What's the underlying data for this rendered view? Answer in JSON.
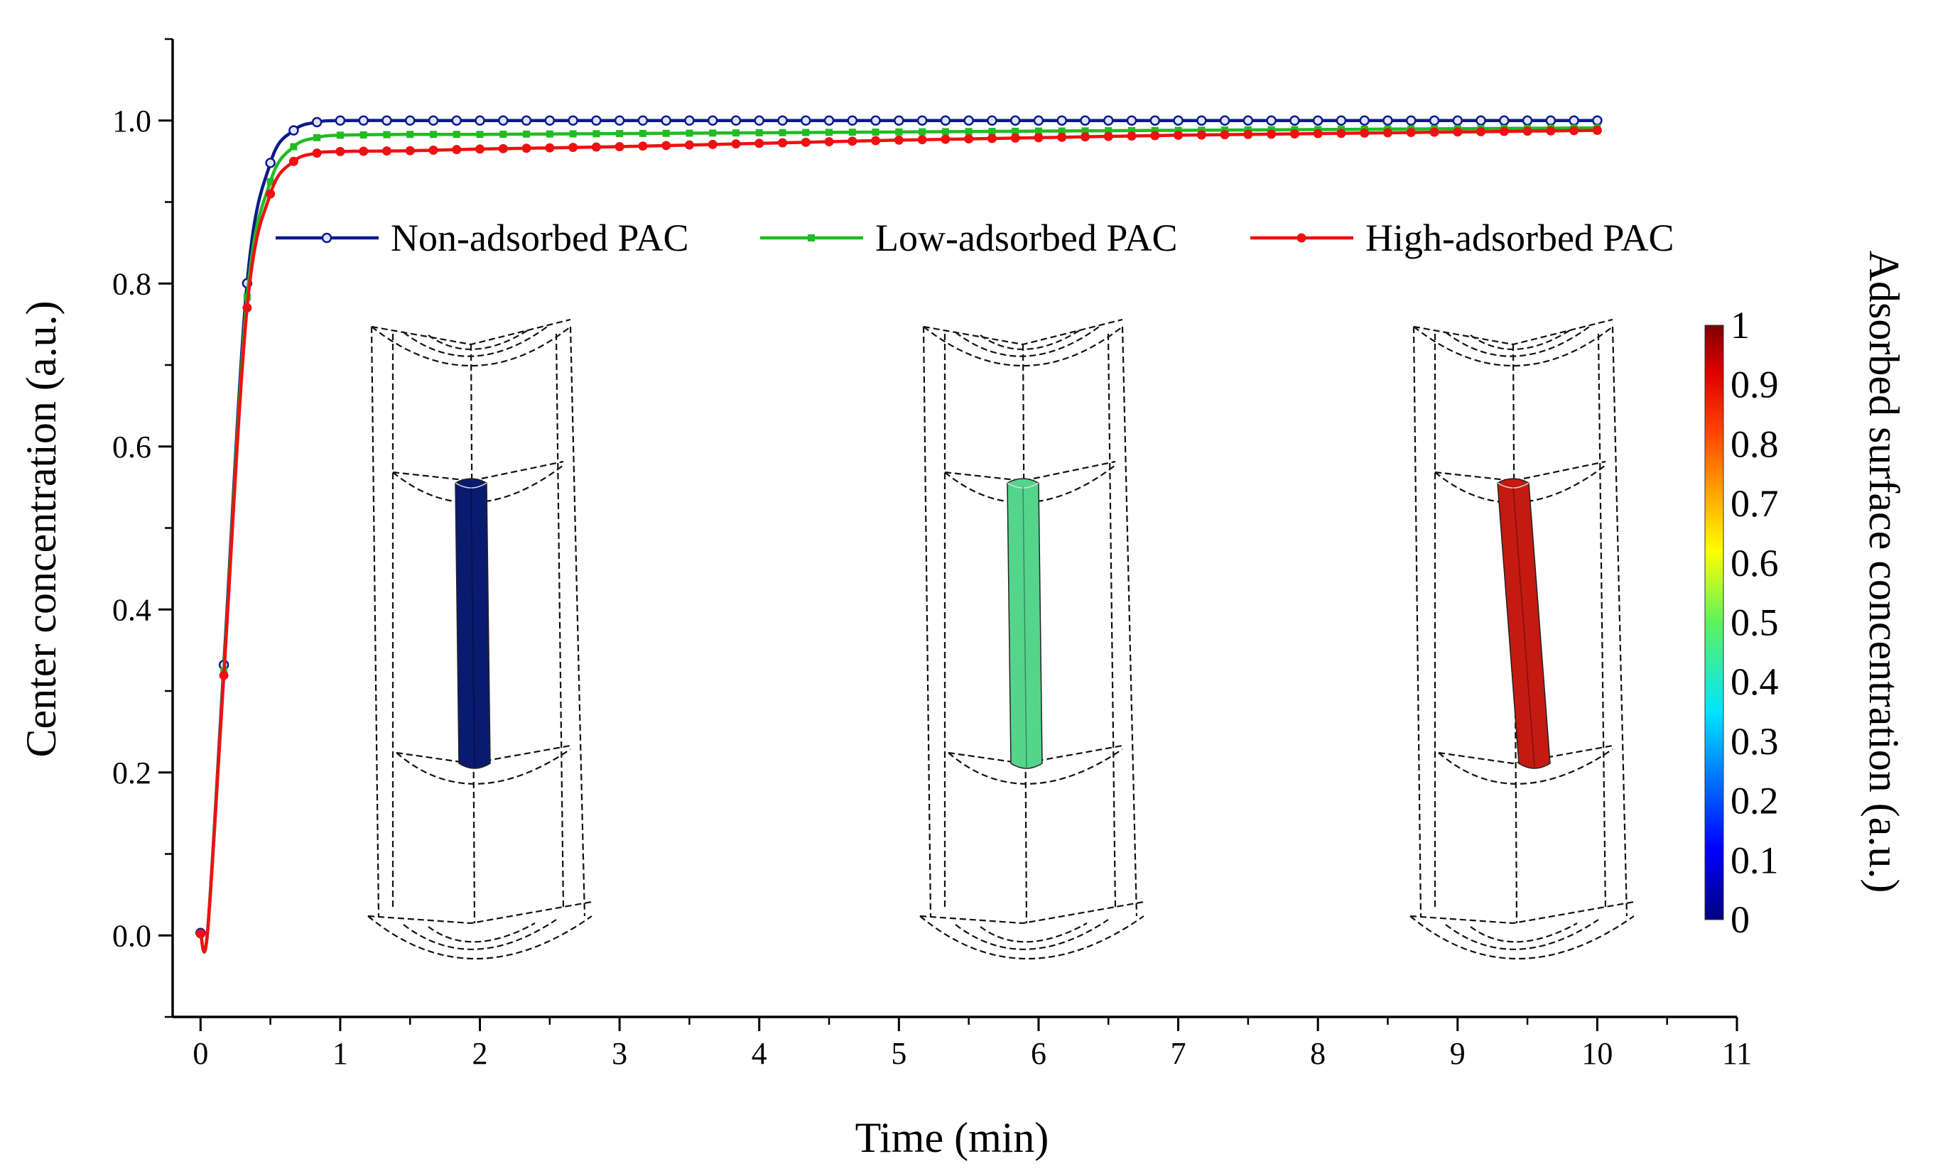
{
  "chart_data": {
    "type": "line",
    "title": "",
    "xlabel": "Time (min)",
    "ylabel": "Center concentration (a.u.)",
    "xlim": [
      -0.2,
      11
    ],
    "ylim": [
      -0.1,
      1.1
    ],
    "xticks": [
      0,
      1,
      2,
      3,
      4,
      5,
      6,
      7,
      8,
      9,
      10,
      11
    ],
    "yticks": [
      0.0,
      0.2,
      0.4,
      0.6,
      0.8,
      1.0
    ],
    "xtick_labels": [
      "0",
      "1",
      "2",
      "3",
      "4",
      "5",
      "6",
      "7",
      "8",
      "9",
      "10",
      "11"
    ],
    "ytick_labels": [
      "0.0",
      "0.2",
      "0.4",
      "0.6",
      "0.8",
      "1.0"
    ],
    "legend_position": "top-center",
    "series": [
      {
        "name": "Non-adsorbed PAC",
        "color": "#0d1b8a",
        "marker": "circle-open",
        "x": [
          0,
          0.05,
          0.167,
          0.333,
          0.5,
          0.667,
          0.833,
          1.0,
          1.5,
          2,
          3,
          4,
          5,
          6,
          7,
          8,
          9,
          10
        ],
        "y": [
          0.003,
          0.005,
          0.333,
          0.8,
          0.948,
          0.988,
          0.998,
          1.0,
          1.0,
          1.0,
          1.0,
          1.0,
          1.0,
          1.0,
          1.0,
          1.0,
          1.0,
          1.0
        ]
      },
      {
        "name": "Low-adsorbed PAC",
        "color": "#22bb22",
        "marker": "square",
        "x": [
          0,
          0.05,
          0.167,
          0.333,
          0.5,
          0.667,
          0.833,
          1.0,
          1.5,
          2,
          3,
          4,
          5,
          6,
          7,
          8,
          9,
          10
        ],
        "y": [
          0.002,
          0.004,
          0.325,
          0.783,
          0.925,
          0.968,
          0.979,
          0.982,
          0.983,
          0.983,
          0.984,
          0.985,
          0.986,
          0.987,
          0.988,
          0.989,
          0.99,
          0.991
        ]
      },
      {
        "name": "High-adsorbed PAC",
        "color": "#ee1111",
        "marker": "circle",
        "x": [
          0,
          0.05,
          0.167,
          0.333,
          0.5,
          0.667,
          0.833,
          1.0,
          1.5,
          2,
          3,
          4,
          5,
          6,
          7,
          8,
          9,
          10
        ],
        "y": [
          0.002,
          0.004,
          0.32,
          0.77,
          0.91,
          0.95,
          0.96,
          0.962,
          0.963,
          0.965,
          0.968,
          0.972,
          0.976,
          0.979,
          0.982,
          0.984,
          0.986,
          0.988
        ]
      }
    ],
    "colorbar": {
      "title": "Adsorbed surface concentration (a.u.)",
      "range": [
        0,
        1
      ],
      "tick_labels": [
        "0",
        "0.1",
        "0.2",
        "0.3",
        "0.4",
        "0.5",
        "0.6",
        "0.7",
        "0.8",
        "0.9",
        "1"
      ],
      "colormap": "jet"
    },
    "insets": [
      {
        "name": "Non-adsorbed PAC",
        "surface_value": 0.0,
        "fill_color": "#0a1a6e"
      },
      {
        "name": "Low-adsorbed PAC",
        "surface_value": 0.45,
        "fill_color": "#55d48c"
      },
      {
        "name": "High-adsorbed PAC",
        "surface_value": 0.95,
        "fill_color": "#c41a10"
      }
    ]
  }
}
